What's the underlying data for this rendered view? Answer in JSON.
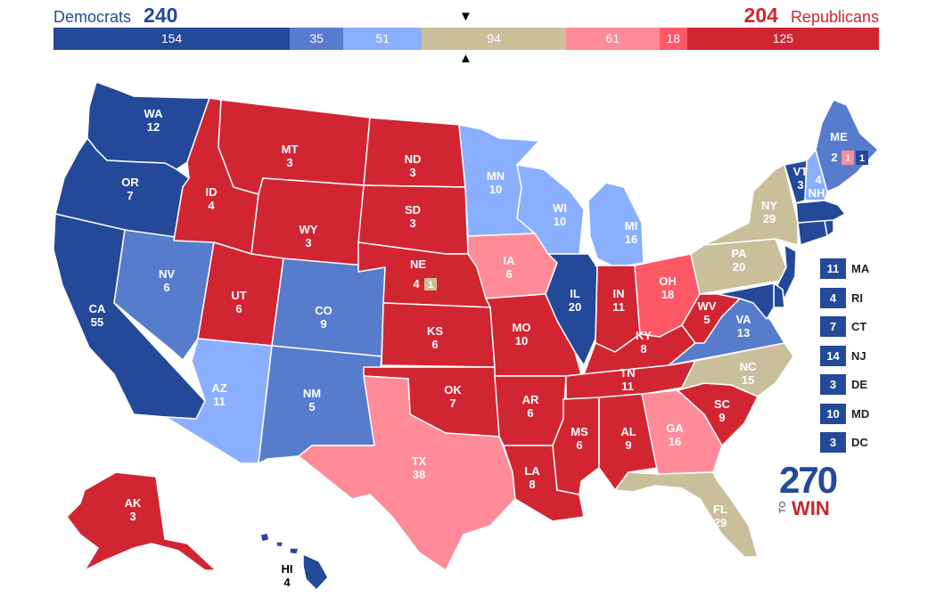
{
  "header": {
    "dem_label": "Democrats",
    "dem_total": "240",
    "rep_label": "Republicans",
    "rep_total": "204",
    "marker_top": "▼",
    "marker_bottom": "▲"
  },
  "tally": [
    {
      "id": "safe-dem",
      "value": 154,
      "label": "154",
      "color": "#244999"
    },
    {
      "id": "likely-dem",
      "value": 35,
      "label": "35",
      "color": "#577ccc"
    },
    {
      "id": "lean-dem",
      "value": 51,
      "label": "51",
      "color": "#8aafff"
    },
    {
      "id": "tossup",
      "value": 94,
      "label": "94",
      "color": "#c9c09b"
    },
    {
      "id": "lean-rep",
      "value": 61,
      "label": "61",
      "color": "#ff8b98"
    },
    {
      "id": "likely-rep",
      "value": 18,
      "label": "18",
      "color": "#ff5865"
    },
    {
      "id": "safe-rep",
      "value": 125,
      "label": "125",
      "color": "#d22532"
    }
  ],
  "colors": {
    "safe_dem": "#244999",
    "likely_dem": "#577ccc",
    "lean_dem": "#8aafff",
    "tossup": "#c9c09b",
    "lean_rep": "#ff8b98",
    "likely_rep": "#ff5865",
    "safe_rep": "#d22532"
  },
  "states": {
    "WA": {
      "abbr": "WA",
      "ev": "12"
    },
    "OR": {
      "abbr": "OR",
      "ev": "7"
    },
    "CA": {
      "abbr": "CA",
      "ev": "55"
    },
    "NV": {
      "abbr": "NV",
      "ev": "6"
    },
    "ID": {
      "abbr": "ID",
      "ev": "4"
    },
    "MT": {
      "abbr": "MT",
      "ev": "3"
    },
    "WY": {
      "abbr": "WY",
      "ev": "3"
    },
    "UT": {
      "abbr": "UT",
      "ev": "6"
    },
    "CO": {
      "abbr": "CO",
      "ev": "9"
    },
    "AZ": {
      "abbr": "AZ",
      "ev": "11"
    },
    "NM": {
      "abbr": "NM",
      "ev": "5"
    },
    "ND": {
      "abbr": "ND",
      "ev": "3"
    },
    "SD": {
      "abbr": "SD",
      "ev": "3"
    },
    "NE": {
      "abbr": "NE",
      "ev": "4",
      "district": "1"
    },
    "KS": {
      "abbr": "KS",
      "ev": "6"
    },
    "OK": {
      "abbr": "OK",
      "ev": "7"
    },
    "TX": {
      "abbr": "TX",
      "ev": "38"
    },
    "MN": {
      "abbr": "MN",
      "ev": "10"
    },
    "IA": {
      "abbr": "IA",
      "ev": "6"
    },
    "MO": {
      "abbr": "MO",
      "ev": "10"
    },
    "AR": {
      "abbr": "AR",
      "ev": "6"
    },
    "LA": {
      "abbr": "LA",
      "ev": "8"
    },
    "WI": {
      "abbr": "WI",
      "ev": "10"
    },
    "IL": {
      "abbr": "IL",
      "ev": "20"
    },
    "MI": {
      "abbr": "MI",
      "ev": "16"
    },
    "IN": {
      "abbr": "IN",
      "ev": "11"
    },
    "OH": {
      "abbr": "OH",
      "ev": "18"
    },
    "KY": {
      "abbr": "KY",
      "ev": "8"
    },
    "TN": {
      "abbr": "TN",
      "ev": "11"
    },
    "MS": {
      "abbr": "MS",
      "ev": "6"
    },
    "AL": {
      "abbr": "AL",
      "ev": "9"
    },
    "GA": {
      "abbr": "GA",
      "ev": "16"
    },
    "FL": {
      "abbr": "FL",
      "ev": "29"
    },
    "SC": {
      "abbr": "SC",
      "ev": "9"
    },
    "NC": {
      "abbr": "NC",
      "ev": "15"
    },
    "VA": {
      "abbr": "VA",
      "ev": "13"
    },
    "WV": {
      "abbr": "WV",
      "ev": "5"
    },
    "PA": {
      "abbr": "PA",
      "ev": "20"
    },
    "NY": {
      "abbr": "NY",
      "ev": "29"
    },
    "VT": {
      "abbr": "VT",
      "ev": "3"
    },
    "NH": {
      "abbr": "NH",
      "ev": "4"
    },
    "ME": {
      "abbr": "ME",
      "ev": "2",
      "d1": "1",
      "d2": "1"
    },
    "AK": {
      "abbr": "AK",
      "ev": "3"
    },
    "HI": {
      "abbr": "HI",
      "ev": "4"
    }
  },
  "small_states": [
    {
      "abbr": "MA",
      "ev": "11"
    },
    {
      "abbr": "RI",
      "ev": "4"
    },
    {
      "abbr": "CT",
      "ev": "7"
    },
    {
      "abbr": "NJ",
      "ev": "14"
    },
    {
      "abbr": "DE",
      "ev": "3"
    },
    {
      "abbr": "MD",
      "ev": "10"
    },
    {
      "abbr": "DC",
      "ev": "3"
    }
  ],
  "logo": {
    "number": "270",
    "to": "TO",
    "win": "WIN"
  }
}
